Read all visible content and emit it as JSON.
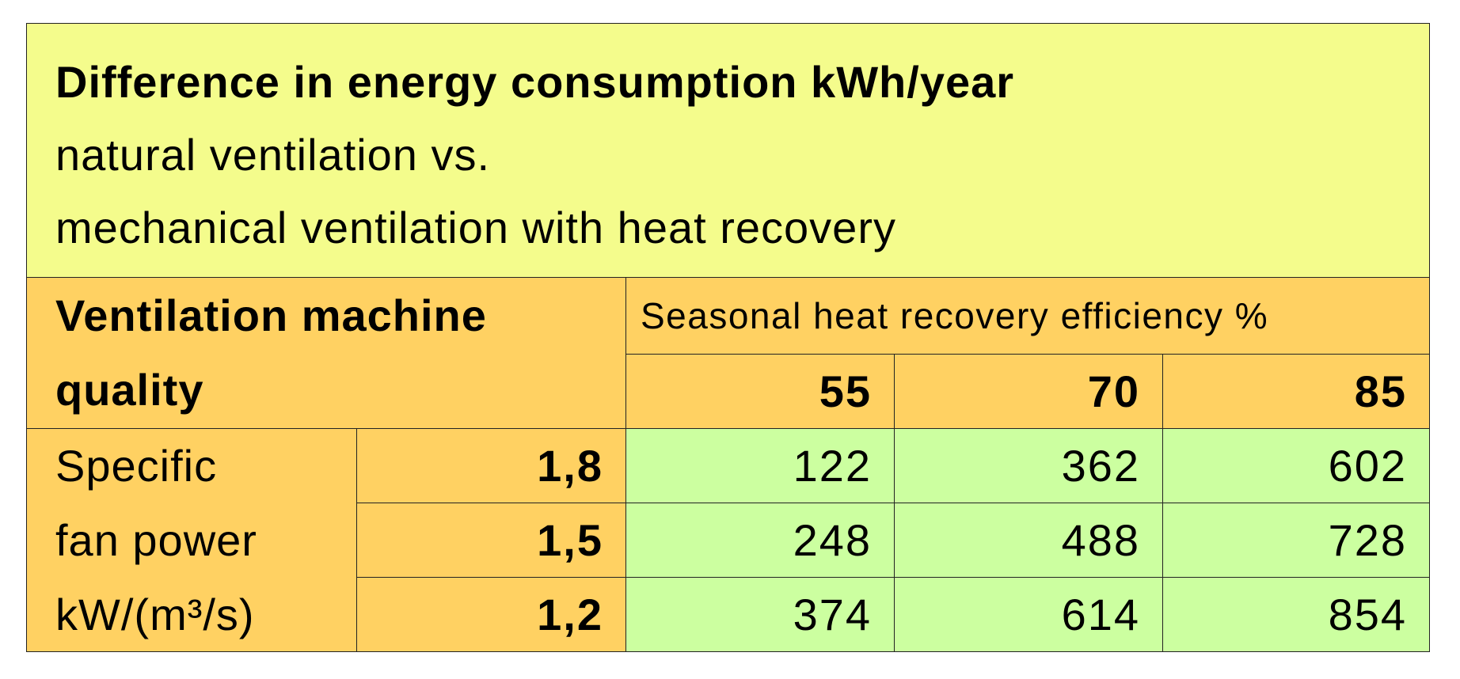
{
  "title": {
    "line1": "Difference in energy consumption kWh/year",
    "line2": "natural ventilation vs.",
    "line3": "mechanical ventilation with heat recovery"
  },
  "header": {
    "row_label_line1": "Ventilation machine",
    "row_label_line2": "quality",
    "column_group": "Seasonal heat recovery efficiency %",
    "columns": [
      "55",
      "70",
      "85"
    ]
  },
  "row_group": {
    "line1": "Specific",
    "line2": "fan power",
    "line3": "kW/(m³/s)"
  },
  "rows": [
    {
      "label": "1,8",
      "values": [
        "122",
        "362",
        "602"
      ]
    },
    {
      "label": "1,5",
      "values": [
        "248",
        "488",
        "728"
      ]
    },
    {
      "label": "1,2",
      "values": [
        "374",
        "614",
        "854"
      ]
    }
  ],
  "colors": {
    "title_bg": "#F4FC8C",
    "header_bg": "#FFD162",
    "data_bg": "#CCFFA0"
  }
}
